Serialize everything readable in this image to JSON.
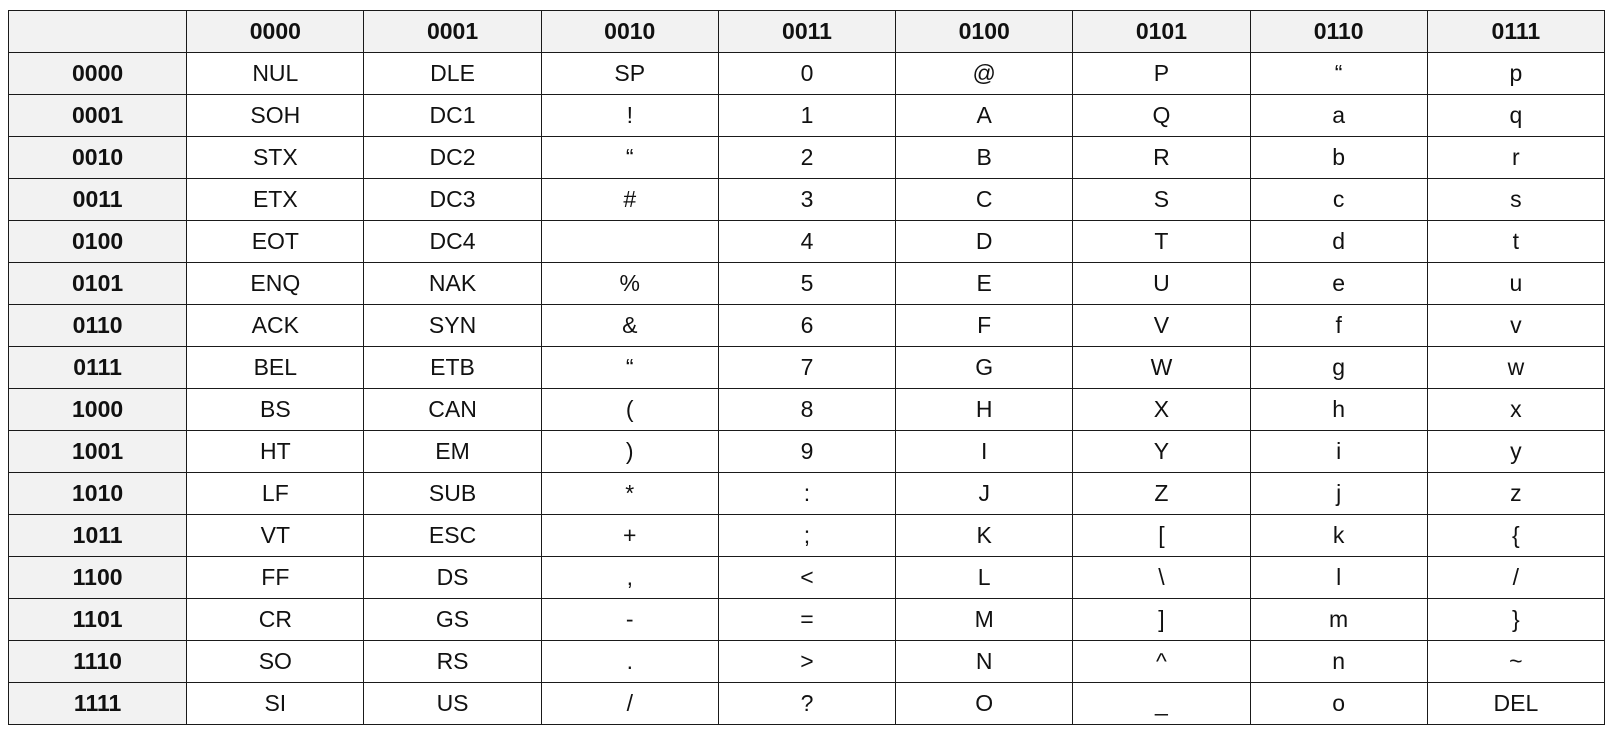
{
  "table": {
    "corner": "",
    "columns": [
      "0000",
      "0001",
      "0010",
      "0011",
      "0100",
      "0101",
      "0110",
      "0111"
    ],
    "rows": [
      {
        "label": "0000",
        "cells": [
          "NUL",
          "DLE",
          "SP",
          "0",
          "@",
          "P",
          "“",
          "p"
        ]
      },
      {
        "label": "0001",
        "cells": [
          "SOH",
          "DC1",
          "!",
          "1",
          "A",
          "Q",
          "a",
          "q"
        ]
      },
      {
        "label": "0010",
        "cells": [
          "STX",
          "DC2",
          "“",
          "2",
          "B",
          "R",
          "b",
          "r"
        ]
      },
      {
        "label": "0011",
        "cells": [
          "ETX",
          "DC3",
          "#",
          "3",
          "C",
          "S",
          "c",
          "s"
        ]
      },
      {
        "label": "0100",
        "cells": [
          "EOT",
          "DC4",
          "",
          "4",
          "D",
          "T",
          "d",
          "t"
        ]
      },
      {
        "label": "0101",
        "cells": [
          "ENQ",
          "NAK",
          "%",
          "5",
          "E",
          "U",
          "e",
          "u"
        ]
      },
      {
        "label": "0110",
        "cells": [
          "ACK",
          "SYN",
          "&",
          "6",
          "F",
          "V",
          "f",
          "v"
        ]
      },
      {
        "label": "0111",
        "cells": [
          "BEL",
          "ETB",
          "“",
          "7",
          "G",
          "W",
          "g",
          "w"
        ]
      },
      {
        "label": "1000",
        "cells": [
          "BS",
          "CAN",
          "(",
          "8",
          "H",
          "X",
          "h",
          "x"
        ]
      },
      {
        "label": "1001",
        "cells": [
          "HT",
          "EM",
          ")",
          "9",
          "I",
          "Y",
          "i",
          "y"
        ]
      },
      {
        "label": "1010",
        "cells": [
          "LF",
          "SUB",
          "*",
          ":",
          "J",
          "Z",
          "j",
          "z"
        ]
      },
      {
        "label": "1011",
        "cells": [
          "VT",
          "ESC",
          "+",
          ";",
          "K",
          "[",
          "k",
          "{"
        ]
      },
      {
        "label": "1100",
        "cells": [
          "FF",
          "DS",
          ",",
          "<",
          "L",
          "\\",
          "l",
          "/"
        ]
      },
      {
        "label": "1101",
        "cells": [
          "CR",
          "GS",
          "-",
          "=",
          "M",
          "]",
          "m",
          "}"
        ]
      },
      {
        "label": "1110",
        "cells": [
          "SO",
          "RS",
          ".",
          ">",
          "N",
          "^",
          "n",
          "~"
        ]
      },
      {
        "label": "1111",
        "cells": [
          "SI",
          "US",
          "/",
          "?",
          "O",
          "_",
          "o",
          "DEL"
        ]
      }
    ]
  }
}
